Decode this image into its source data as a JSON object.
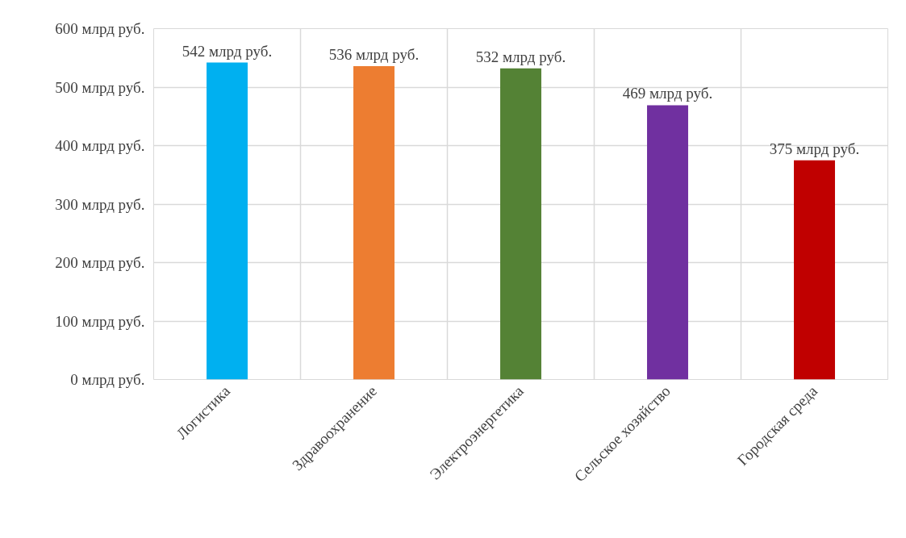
{
  "chart_data": {
    "type": "bar",
    "categories": [
      "Логистика",
      "Здравоохранение",
      "Электроэнергетика",
      "Сельское хозяйство",
      "Городская среда"
    ],
    "values": [
      542,
      536,
      532,
      469,
      375
    ],
    "colors": [
      "#00b0f0",
      "#ed7d31",
      "#548235",
      "#7030a0",
      "#c00000"
    ],
    "value_labels": [
      "542 млрд руб.",
      "536 млрд руб.",
      "532 млрд руб.",
      "469 млрд руб.",
      "375 млрд руб."
    ],
    "ylim": [
      0,
      600
    ],
    "yticks": [
      {
        "value": 0,
        "label": "0 млрд руб."
      },
      {
        "value": 100,
        "label": "100 млрд руб."
      },
      {
        "value": 200,
        "label": "200 млрд руб."
      },
      {
        "value": 300,
        "label": "300 млрд руб."
      },
      {
        "value": 400,
        "label": "400 млрд руб."
      },
      {
        "value": 500,
        "label": "500 млрд руб."
      },
      {
        "value": 600,
        "label": "600 млрд руб."
      }
    ],
    "grid": true
  }
}
